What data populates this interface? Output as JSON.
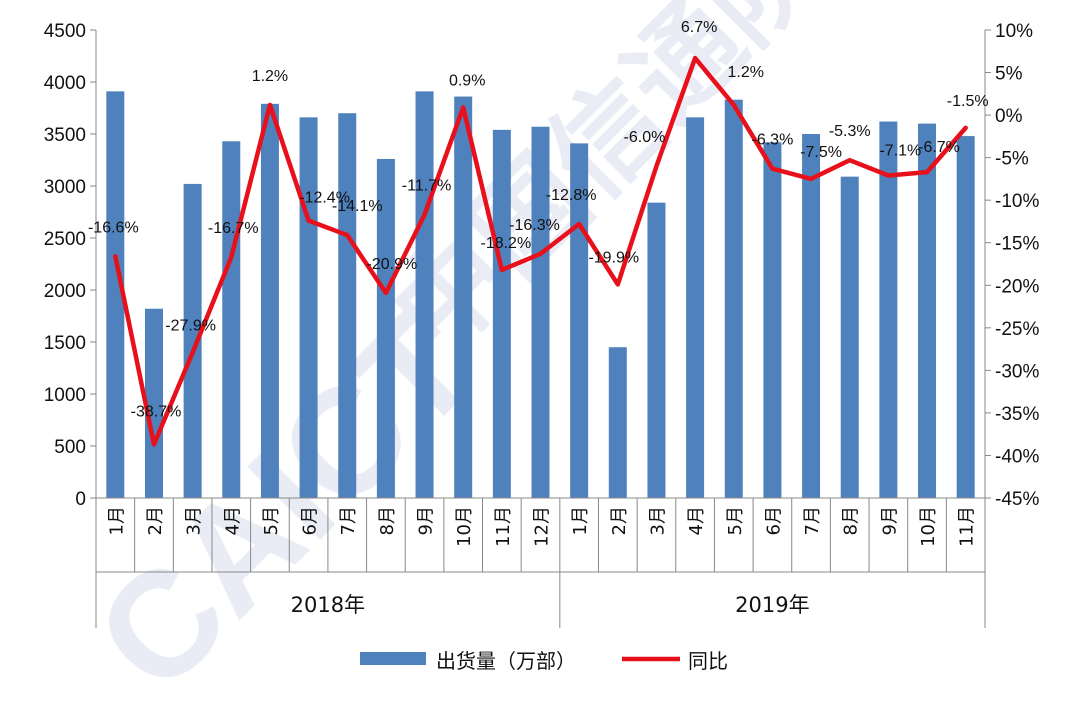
{
  "chart_data": {
    "type": "bar",
    "title": "",
    "categories": [
      "1月",
      "2月",
      "3月",
      "4月",
      "5月",
      "6月",
      "7月",
      "8月",
      "9月",
      "10月",
      "11月",
      "12月",
      "1月",
      "2月",
      "3月",
      "4月",
      "5月",
      "6月",
      "7月",
      "8月",
      "9月",
      "10月",
      "11月"
    ],
    "groups": [
      {
        "label": "2018年",
        "count": 12
      },
      {
        "label": "2019年",
        "count": 11
      }
    ],
    "series": [
      {
        "name": "出货量（万部）",
        "type": "bar",
        "axis": "left",
        "color": "#4f81bd",
        "values": [
          3910,
          1820,
          3020,
          3430,
          3790,
          3660,
          3700,
          3260,
          3910,
          3860,
          3540,
          3570,
          3410,
          1450,
          2840,
          3660,
          3830,
          3420,
          3500,
          3090,
          3620,
          3600,
          3480
        ]
      },
      {
        "name": "同比",
        "type": "line",
        "axis": "right",
        "color": "#e8101a",
        "values": [
          -16.6,
          -38.7,
          -27.9,
          -16.7,
          1.2,
          -12.4,
          -14.1,
          -20.9,
          -11.7,
          0.9,
          -18.2,
          -16.3,
          -12.8,
          -19.9,
          -6.0,
          6.7,
          1.2,
          -6.3,
          -7.5,
          -5.3,
          -7.1,
          -6.7,
          -1.5
        ],
        "labels": [
          "-16.6%",
          "-38.7%",
          "-27.9%",
          "-16.7%",
          "1.2%",
          "-12.4%",
          "-14.1%",
          "-20.9%",
          "-11.7%",
          "0.9%",
          "-18.2%",
          "-16.3%",
          "-12.8%",
          "-19.9%",
          "-6.0%",
          "6.7%",
          "1.2%",
          "-6.3%",
          "-7.5%",
          "-5.3%",
          "-7.1%",
          "-6.7%",
          "-1.5%"
        ]
      }
    ],
    "y_left": {
      "min": 0,
      "max": 4500,
      "step": 500,
      "ticks": [
        "0",
        "500",
        "1000",
        "1500",
        "2000",
        "2500",
        "3000",
        "3500",
        "4000",
        "4500"
      ]
    },
    "y_right": {
      "min": -45,
      "max": 10,
      "step": 5,
      "ticks": [
        "-45%",
        "-40%",
        "-35%",
        "-30%",
        "-25%",
        "-20%",
        "-15%",
        "-10%",
        "-5%",
        "0%",
        "5%",
        "10%"
      ]
    },
    "grid": false,
    "legend": {
      "placement": "bottom-center",
      "items": [
        "出货量（万部）",
        "同比"
      ]
    },
    "watermark": "CAICT 中国信通院"
  }
}
